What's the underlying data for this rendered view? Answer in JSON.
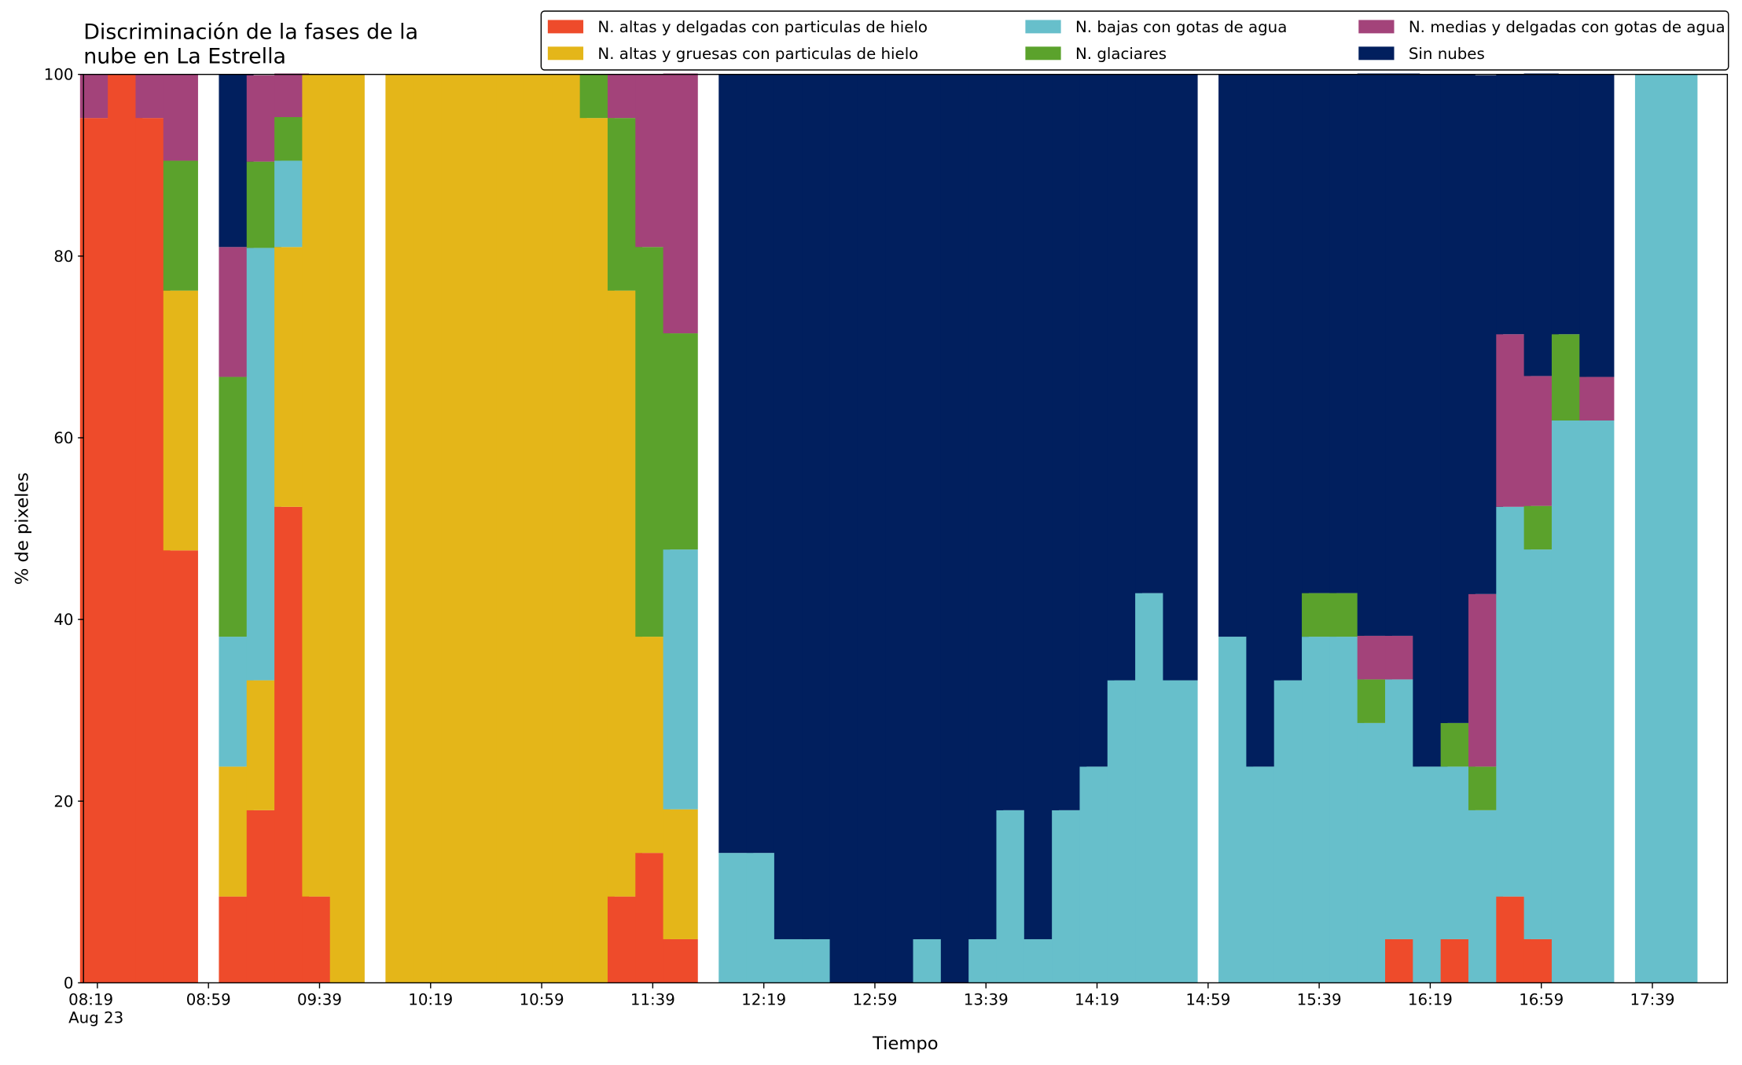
{
  "chart_data": {
    "type": "bar",
    "stacked": true,
    "title": "Discriminación de la fases de la\nnube en La Estrella",
    "xlabel": "Tiempo",
    "ylabel": "% de pixeles",
    "x": [
      "08:19",
      "08:29",
      "08:39",
      "08:49",
      "09:09",
      "09:19",
      "09:29",
      "09:39",
      "09:49",
      "10:09",
      "10:19",
      "10:29",
      "10:39",
      "10:49",
      "10:59",
      "11:09",
      "11:19",
      "11:29",
      "11:39",
      "11:49",
      "12:09",
      "12:19",
      "12:29",
      "12:39",
      "12:49",
      "12:59",
      "13:09",
      "13:19",
      "13:29",
      "13:39",
      "13:49",
      "13:59",
      "14:09",
      "14:19",
      "14:29",
      "14:39",
      "14:49",
      "15:09",
      "15:19",
      "15:29",
      "15:39",
      "15:49",
      "15:59",
      "16:09",
      "16:19",
      "16:29",
      "16:39",
      "16:49",
      "16:59",
      "17:09",
      "17:19",
      "17:39",
      "17:49"
    ],
    "xlim": [
      "08:14",
      "18:06"
    ],
    "xticks": [
      {
        "value": "08:19",
        "label": "08:19\nAug 23"
      },
      "08:59",
      "09:39",
      "10:19",
      "10:59",
      "11:39",
      "12:19",
      "12:59",
      "13:39",
      "14:19",
      "14:59",
      "15:39",
      "16:19",
      "16:59",
      "17:39"
    ],
    "ylim": [
      0,
      100
    ],
    "yticks": [
      0,
      20,
      40,
      60,
      80,
      100
    ],
    "legend": "top right",
    "series": [
      {
        "name": "N. altas y delgadas con particulas de hielo",
        "color": "#ee4b2b",
        "values": [
          95.2,
          100,
          95.2,
          47.6,
          9.5,
          19,
          52.4,
          9.5,
          0,
          0,
          0,
          0,
          0,
          0,
          0,
          0,
          0,
          9.5,
          14.3,
          4.8,
          0,
          0,
          0,
          0,
          0,
          0,
          0,
          0,
          0,
          0,
          0,
          0,
          0,
          0,
          0,
          0,
          0,
          0,
          0,
          0,
          0,
          0,
          0,
          4.8,
          0,
          4.8,
          0,
          9.5,
          4.8,
          0,
          0,
          0,
          0
        ]
      },
      {
        "name": "N. altas y gruesas con particulas de hielo",
        "color": "#e4b619",
        "values": [
          0,
          0,
          0,
          28.6,
          14.3,
          14.3,
          28.6,
          90.5,
          100,
          100,
          100,
          100,
          100,
          100,
          100,
          100,
          95.2,
          66.7,
          23.8,
          14.3,
          0,
          0,
          0,
          0,
          0,
          0,
          0,
          0,
          0,
          0,
          0,
          0,
          0,
          0,
          0,
          0,
          0,
          0,
          0,
          0,
          0,
          0,
          0,
          0,
          0,
          0,
          0,
          0,
          0,
          0,
          0,
          0,
          0
        ]
      },
      {
        "name": "N. bajas con gotas de agua",
        "color": "#67bfcb",
        "values": [
          0,
          0,
          0,
          0,
          14.3,
          47.6,
          9.5,
          0,
          0,
          0,
          0,
          0,
          0,
          0,
          0,
          0,
          0,
          0,
          0,
          28.6,
          14.3,
          14.3,
          4.8,
          4.8,
          0,
          0,
          0,
          4.8,
          0,
          4.8,
          19,
          4.8,
          19,
          23.8,
          33.3,
          42.9,
          33.3,
          38.1,
          23.8,
          33.3,
          38.1,
          38.1,
          28.6,
          28.6,
          23.8,
          19,
          19,
          42.9,
          42.9,
          61.9,
          61.9,
          100,
          100
        ]
      },
      {
        "name": "N. glaciares",
        "color": "#5ba22c",
        "values": [
          0,
          0,
          0,
          14.3,
          28.6,
          9.5,
          4.8,
          0,
          0,
          0,
          0,
          0,
          0,
          0,
          0,
          0,
          4.8,
          19,
          42.9,
          23.8,
          0,
          0,
          0,
          0,
          0,
          0,
          0,
          0,
          0,
          0,
          0,
          0,
          0,
          0,
          0,
          0,
          0,
          0,
          0,
          0,
          4.8,
          4.8,
          4.8,
          0,
          0,
          4.8,
          4.8,
          0,
          4.8,
          9.5,
          0,
          0,
          0
        ]
      },
      {
        "name": "N. medias y delgadas con gotas de agua",
        "color": "#a3437a",
        "values": [
          4.8,
          0,
          4.8,
          9.5,
          14.3,
          9.5,
          4.8,
          0,
          0,
          0,
          0,
          0,
          0,
          0,
          0,
          0,
          0,
          4.8,
          19,
          28.6,
          0,
          0,
          0,
          0,
          0,
          0,
          0,
          0,
          0,
          0,
          0,
          0,
          0,
          0,
          0,
          0,
          0,
          0,
          0,
          0,
          0,
          0,
          4.8,
          4.8,
          0,
          0,
          19,
          19,
          14.3,
          0,
          4.8,
          0,
          0
        ]
      },
      {
        "name": "Sin nubes",
        "color": "#011f5e",
        "values": [
          0,
          0,
          0,
          0,
          19,
          0,
          0,
          0,
          0,
          0,
          0,
          0,
          0,
          0,
          0,
          0,
          0,
          0,
          0,
          0,
          85.7,
          85.7,
          95.2,
          95.2,
          100,
          100,
          100,
          95.2,
          100,
          95.2,
          81,
          95.2,
          81,
          76.2,
          66.7,
          57.1,
          66.7,
          61.9,
          76.2,
          66.7,
          57.1,
          57.1,
          61.9,
          61.9,
          76.2,
          71.4,
          57.1,
          28.6,
          33.3,
          28.6,
          33.3,
          0,
          0
        ]
      }
    ]
  }
}
